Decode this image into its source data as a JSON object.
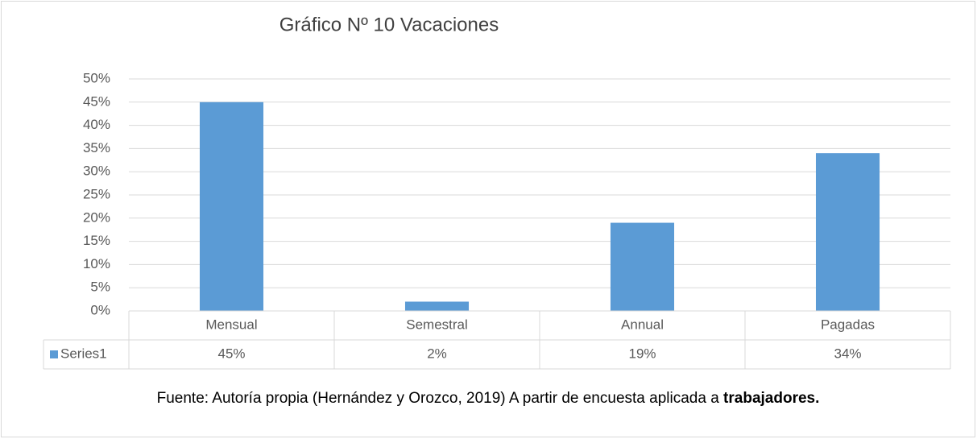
{
  "chart_data": {
    "type": "bar",
    "title": "Gráfico Nº 10  Vacaciones",
    "categories": [
      "Mensual",
      "Semestral",
      "Annual",
      "Pagadas"
    ],
    "series": [
      {
        "name": "Series1",
        "color": "#5b9bd5",
        "values": [
          45,
          2,
          19,
          34
        ],
        "value_labels": [
          "45%",
          "2%",
          "19%",
          "34%"
        ]
      }
    ],
    "ylim": [
      0,
      50
    ],
    "yticks": [
      {
        "value": 0,
        "label": "0%"
      },
      {
        "value": 5,
        "label": "5%"
      },
      {
        "value": 10,
        "label": "10%"
      },
      {
        "value": 15,
        "label": "15%"
      },
      {
        "value": 20,
        "label": "20%"
      },
      {
        "value": 25,
        "label": "25%"
      },
      {
        "value": 30,
        "label": "30%"
      },
      {
        "value": 35,
        "label": "35%"
      },
      {
        "value": 40,
        "label": "40%"
      },
      {
        "value": 45,
        "label": "45%"
      },
      {
        "value": 50,
        "label": "50%"
      }
    ],
    "grid": true,
    "source": [
      "Fuente: Autoría propia (Hernández y Orozco, 2019) A partir de encuesta aplicada a ",
      "trabajadores."
    ]
  }
}
